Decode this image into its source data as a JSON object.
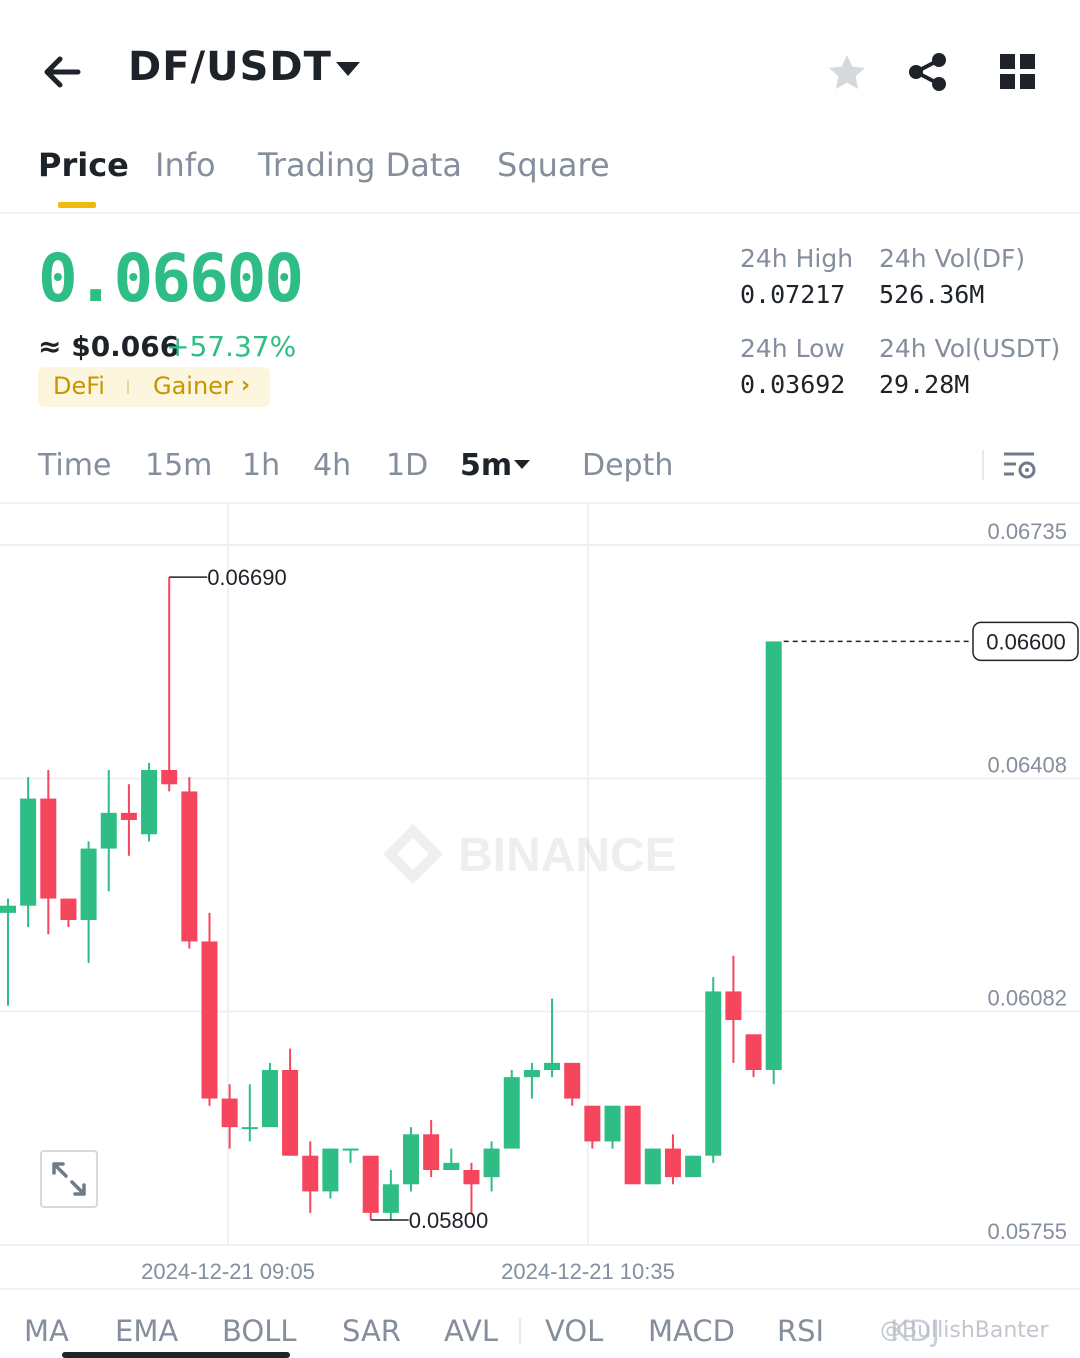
{
  "header": {
    "pair": "DF/USDT",
    "icons": [
      "back-arrow-icon",
      "star-icon",
      "share-icon",
      "grid-icon"
    ]
  },
  "tabs": [
    {
      "label": "Price",
      "active": true
    },
    {
      "label": "Info",
      "active": false
    },
    {
      "label": "Trading Data",
      "active": false
    },
    {
      "label": "Square",
      "active": false
    }
  ],
  "ticker": {
    "last_price": "0.06600",
    "approx_usd": "≈ $0.066",
    "change_pct": "+57.37%",
    "tag_1": "DeFi",
    "tag_2": "Gainer",
    "high_label": "24h High",
    "high_value": "0.07217",
    "low_label": "24h Low",
    "low_value": "0.03692",
    "vol_base_label": "24h Vol(DF)",
    "vol_base_value": "526.36M",
    "vol_quote_label": "24h Vol(USDT)",
    "vol_quote_value": "29.28M",
    "price_color": "#2ebd85"
  },
  "intervals": [
    {
      "label": "Time",
      "active": false
    },
    {
      "label": "15m",
      "active": false
    },
    {
      "label": "1h",
      "active": false
    },
    {
      "label": "4h",
      "active": false
    },
    {
      "label": "1D",
      "active": false
    },
    {
      "label": "5m",
      "active": true
    },
    {
      "label": "Depth",
      "active": false
    }
  ],
  "chart_data": {
    "type": "candlestick",
    "watermark": "BINANCE",
    "up_color": "#2ebd85",
    "down_color": "#f6465d",
    "y_ticks": [
      0.06735,
      0.06408,
      0.06082,
      0.05755
    ],
    "ylim": [
      0.05755,
      0.06735
    ],
    "x_ticks": [
      "2024-12-21 09:05",
      "2024-12-21 10:35"
    ],
    "last_price_label": "0.06600",
    "high_marker": "0.06690",
    "low_marker": "0.05800",
    "candles": [
      {
        "o": 0.0622,
        "h": 0.0624,
        "l": 0.0609,
        "c": 0.0623
      },
      {
        "o": 0.0623,
        "h": 0.0641,
        "l": 0.062,
        "c": 0.0638
      },
      {
        "o": 0.0638,
        "h": 0.0642,
        "l": 0.0619,
        "c": 0.0624
      },
      {
        "o": 0.0624,
        "h": 0.0624,
        "l": 0.062,
        "c": 0.0621
      },
      {
        "o": 0.0621,
        "h": 0.0632,
        "l": 0.0615,
        "c": 0.0631
      },
      {
        "o": 0.0631,
        "h": 0.0642,
        "l": 0.0625,
        "c": 0.0636
      },
      {
        "o": 0.0636,
        "h": 0.064,
        "l": 0.063,
        "c": 0.0635
      },
      {
        "o": 0.0633,
        "h": 0.0643,
        "l": 0.0632,
        "c": 0.0642
      },
      {
        "o": 0.0642,
        "h": 0.0669,
        "l": 0.0639,
        "c": 0.064
      },
      {
        "o": 0.0639,
        "h": 0.0641,
        "l": 0.0617,
        "c": 0.0618
      },
      {
        "o": 0.0618,
        "h": 0.0622,
        "l": 0.0595,
        "c": 0.0596
      },
      {
        "o": 0.0596,
        "h": 0.0598,
        "l": 0.0589,
        "c": 0.0592
      },
      {
        "o": 0.0592,
        "h": 0.0598,
        "l": 0.059,
        "c": 0.0592
      },
      {
        "o": 0.0592,
        "h": 0.0601,
        "l": 0.0592,
        "c": 0.06
      },
      {
        "o": 0.06,
        "h": 0.0603,
        "l": 0.0588,
        "c": 0.0588
      },
      {
        "o": 0.0588,
        "h": 0.059,
        "l": 0.058,
        "c": 0.0583
      },
      {
        "o": 0.0583,
        "h": 0.0589,
        "l": 0.0582,
        "c": 0.0589
      },
      {
        "o": 0.0589,
        "h": 0.0589,
        "l": 0.0587,
        "c": 0.0589
      },
      {
        "o": 0.0588,
        "h": 0.0588,
        "l": 0.0579,
        "c": 0.058
      },
      {
        "o": 0.058,
        "h": 0.0586,
        "l": 0.0579,
        "c": 0.0584
      },
      {
        "o": 0.0584,
        "h": 0.0592,
        "l": 0.0583,
        "c": 0.0591
      },
      {
        "o": 0.0591,
        "h": 0.0593,
        "l": 0.0585,
        "c": 0.0586
      },
      {
        "o": 0.0586,
        "h": 0.0589,
        "l": 0.0586,
        "c": 0.0587
      },
      {
        "o": 0.0586,
        "h": 0.0587,
        "l": 0.058,
        "c": 0.0584
      },
      {
        "o": 0.0585,
        "h": 0.059,
        "l": 0.0583,
        "c": 0.0589
      },
      {
        "o": 0.0589,
        "h": 0.06,
        "l": 0.0589,
        "c": 0.0599
      },
      {
        "o": 0.0599,
        "h": 0.0601,
        "l": 0.0596,
        "c": 0.06
      },
      {
        "o": 0.06,
        "h": 0.061,
        "l": 0.0599,
        "c": 0.0601
      },
      {
        "o": 0.0601,
        "h": 0.0601,
        "l": 0.0595,
        "c": 0.0596
      },
      {
        "o": 0.0595,
        "h": 0.0595,
        "l": 0.0589,
        "c": 0.059
      },
      {
        "o": 0.059,
        "h": 0.0595,
        "l": 0.0589,
        "c": 0.0595
      },
      {
        "o": 0.0595,
        "h": 0.0595,
        "l": 0.0584,
        "c": 0.0584
      },
      {
        "o": 0.0584,
        "h": 0.0589,
        "l": 0.0584,
        "c": 0.0589
      },
      {
        "o": 0.0589,
        "h": 0.0591,
        "l": 0.0584,
        "c": 0.0585
      },
      {
        "o": 0.0585,
        "h": 0.0588,
        "l": 0.0585,
        "c": 0.0588
      },
      {
        "o": 0.0588,
        "h": 0.0613,
        "l": 0.0587,
        "c": 0.0611
      },
      {
        "o": 0.0611,
        "h": 0.0616,
        "l": 0.0601,
        "c": 0.0607
      },
      {
        "o": 0.0605,
        "h": 0.0605,
        "l": 0.0599,
        "c": 0.06
      },
      {
        "o": 0.06,
        "h": 0.066,
        "l": 0.0598,
        "c": 0.066
      }
    ]
  },
  "indicators": [
    "MA",
    "EMA",
    "BOLL",
    "SAR",
    "AVL",
    "VOL",
    "MACD",
    "RSI",
    "KDJ"
  ],
  "watermark_text": "@BullishBanter"
}
